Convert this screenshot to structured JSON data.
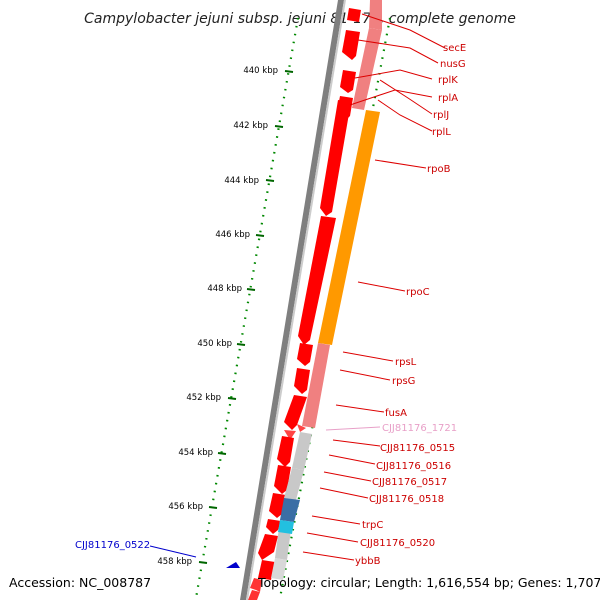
{
  "title": "Campylobacter jejuni subsp. jejuni 81-176, complete genome",
  "footer": {
    "accession": "Accession: NC_008787",
    "topology": "Topology: circular; Length: 1,616,554 bp; Genes: 1,707"
  },
  "colors": {
    "backbone": "#808080",
    "cds": "#ff0000",
    "rrna_operon": "#ff9900",
    "pink": "#f08080",
    "grey_gene": "#c0c0c0",
    "steel_blue": "#3a6ea5",
    "cyan": "#22c0e0",
    "tick_green": "#006600",
    "label_red": "#cc0000",
    "label_pink": "#e8a0c8",
    "label_blue": "#0000cc"
  },
  "ticks": [
    {
      "label": "440 kbp"
    },
    {
      "label": "442 kbp"
    },
    {
      "label": "444 kbp"
    },
    {
      "label": "446 kbp"
    },
    {
      "label": "448 kbp"
    },
    {
      "label": "450 kbp"
    },
    {
      "label": "452 kbp"
    },
    {
      "label": "454 kbp"
    },
    {
      "label": "456 kbp"
    },
    {
      "label": "458 kbp"
    }
  ],
  "genes": [
    {
      "name": "secE",
      "color": "label_red"
    },
    {
      "name": "nusG",
      "color": "label_red"
    },
    {
      "name": "rplK",
      "color": "label_red"
    },
    {
      "name": "rplA",
      "color": "label_red"
    },
    {
      "name": "rplJ",
      "color": "label_red"
    },
    {
      "name": "rplL",
      "color": "label_red"
    },
    {
      "name": "rpoB",
      "color": "label_red"
    },
    {
      "name": "rpoC",
      "color": "label_red"
    },
    {
      "name": "rpsL",
      "color": "label_red"
    },
    {
      "name": "rpsG",
      "color": "label_red"
    },
    {
      "name": "fusA",
      "color": "label_red"
    },
    {
      "name": "CJJ81176_1721",
      "color": "label_pink"
    },
    {
      "name": "CJJ81176_0515",
      "color": "label_red"
    },
    {
      "name": "CJJ81176_0516",
      "color": "label_red"
    },
    {
      "name": "CJJ81176_0517",
      "color": "label_red"
    },
    {
      "name": "CJJ81176_0518",
      "color": "label_red"
    },
    {
      "name": "trpC",
      "color": "label_red"
    },
    {
      "name": "CJJ81176_0520",
      "color": "label_red"
    },
    {
      "name": "ybbB",
      "color": "label_red"
    },
    {
      "name": "CJJ81176_0522",
      "color": "label_blue"
    }
  ]
}
